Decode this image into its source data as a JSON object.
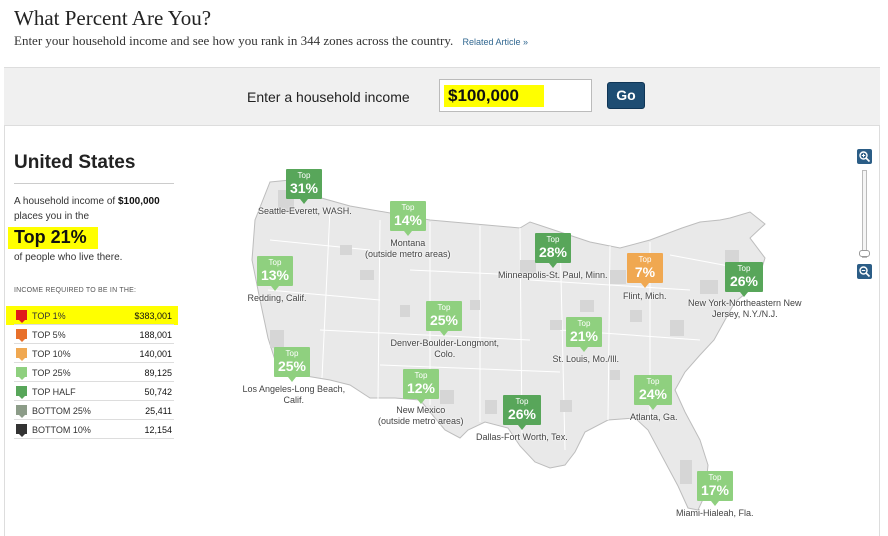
{
  "header": {
    "title": "What Percent Are You?",
    "subtitle": "Enter your household income and see how you rank in 344 zones across the country.",
    "link": "Related Article »"
  },
  "search": {
    "label": "Enter a household income",
    "value": "$100,000",
    "go_label": "Go"
  },
  "sidebar": {
    "title": "United States",
    "desc_prefix": "A household income of ",
    "desc_amount": "$100,000",
    "desc_suffix": "places you in the",
    "rank": "Top 21%",
    "rank_tail": "of people who live there.",
    "income_heading": "INCOME REQUIRED TO BE IN THE:",
    "income_rows": [
      {
        "label": "TOP 1%",
        "value": "$383,001",
        "color": "#e01b1b"
      },
      {
        "label": "TOP 5%",
        "value": "188,001",
        "color": "#e8702a"
      },
      {
        "label": "TOP 10%",
        "value": "140,001",
        "color": "#f0a851"
      },
      {
        "label": "TOP 25%",
        "value": "89,125",
        "color": "#8fd07f"
      },
      {
        "label": "TOP HALF",
        "value": "50,742",
        "color": "#58a65a"
      },
      {
        "label": "BOTTOM 25%",
        "value": "25,411",
        "color": "#8c9c88"
      },
      {
        "label": "BOTTOM 10%",
        "value": "12,154",
        "color": "#333333"
      }
    ]
  },
  "map": {
    "top_label": "Top",
    "pins": [
      {
        "pct": "31%",
        "city": "Seattle-Everett, WASH.",
        "color": "#58a65a"
      },
      {
        "pct": "14%",
        "city": "Montana\n(outside metro areas)",
        "color": "#8fd07f"
      },
      {
        "pct": "28%",
        "city": "Minneapolis-St. Paul, Minn.",
        "color": "#58a65a"
      },
      {
        "pct": "7%",
        "city": "Flint, Mich.",
        "color": "#f0a851"
      },
      {
        "pct": "26%",
        "city": "New York-Northeastern New\nJersey, N.Y./N.J.",
        "color": "#58a65a"
      },
      {
        "pct": "13%",
        "city": "Redding, Calif.",
        "color": "#8fd07f"
      },
      {
        "pct": "25%",
        "city": "Denver-Boulder-Longmont,\nColo.",
        "color": "#8fd07f"
      },
      {
        "pct": "21%",
        "city": "St. Louis, Mo./Ill.",
        "color": "#8fd07f"
      },
      {
        "pct": "25%",
        "city": "Los Angeles-Long Beach,\nCalif.",
        "color": "#8fd07f"
      },
      {
        "pct": "12%",
        "city": "New Mexico\n(outside metro areas)",
        "color": "#8fd07f"
      },
      {
        "pct": "26%",
        "city": "Dallas-Fort Worth, Tex.",
        "color": "#58a65a"
      },
      {
        "pct": "24%",
        "city": "Atlanta, Ga.",
        "color": "#8fd07f"
      },
      {
        "pct": "17%",
        "city": "Miami-Hialeah, Fla.",
        "color": "#8fd07f"
      }
    ]
  }
}
